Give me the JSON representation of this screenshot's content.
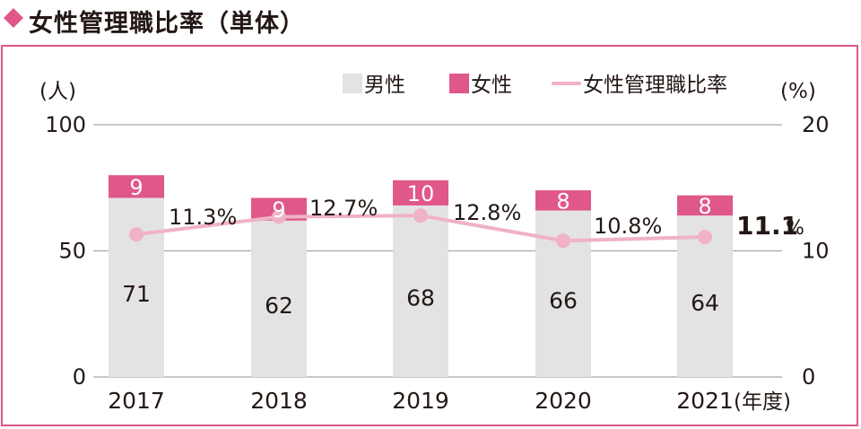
{
  "title": "女性管理職比率（単体）",
  "legend": {
    "male": "男性",
    "female": "女性",
    "ratio": "女性管理職比率"
  },
  "colors": {
    "accent": "#e0578a",
    "male": "#e3e3e3",
    "female": "#e0578a",
    "ratio_line": "#f0b2c4",
    "grid": "#a7a7a7"
  },
  "chart_data": {
    "type": "bar",
    "stacked": true,
    "categories": [
      "2017",
      "2018",
      "2019",
      "2020",
      "2021"
    ],
    "xlabel_suffix": "(年度)",
    "series": [
      {
        "name": "男性",
        "values": [
          71,
          62,
          68,
          66,
          64
        ]
      },
      {
        "name": "女性",
        "values": [
          9,
          9,
          10,
          8,
          8
        ]
      }
    ],
    "line_series": {
      "name": "女性管理職比率",
      "values": [
        11.3,
        12.7,
        12.8,
        10.8,
        11.1
      ],
      "labels": [
        "11.3%",
        "12.7%",
        "12.8%",
        "10.8%",
        "11.1"
      ],
      "last_label_unit": "%",
      "axis": "right"
    },
    "ylabel_left": "(人)",
    "ylabel_right": "(%)",
    "ylim_left": [
      0,
      100
    ],
    "ylim_right": [
      0,
      20
    ],
    "yticks_left": [
      "0",
      "50",
      "100"
    ],
    "yticks_right": [
      "0",
      "10",
      "20"
    ],
    "grid": true,
    "legend_position": "top-right"
  }
}
